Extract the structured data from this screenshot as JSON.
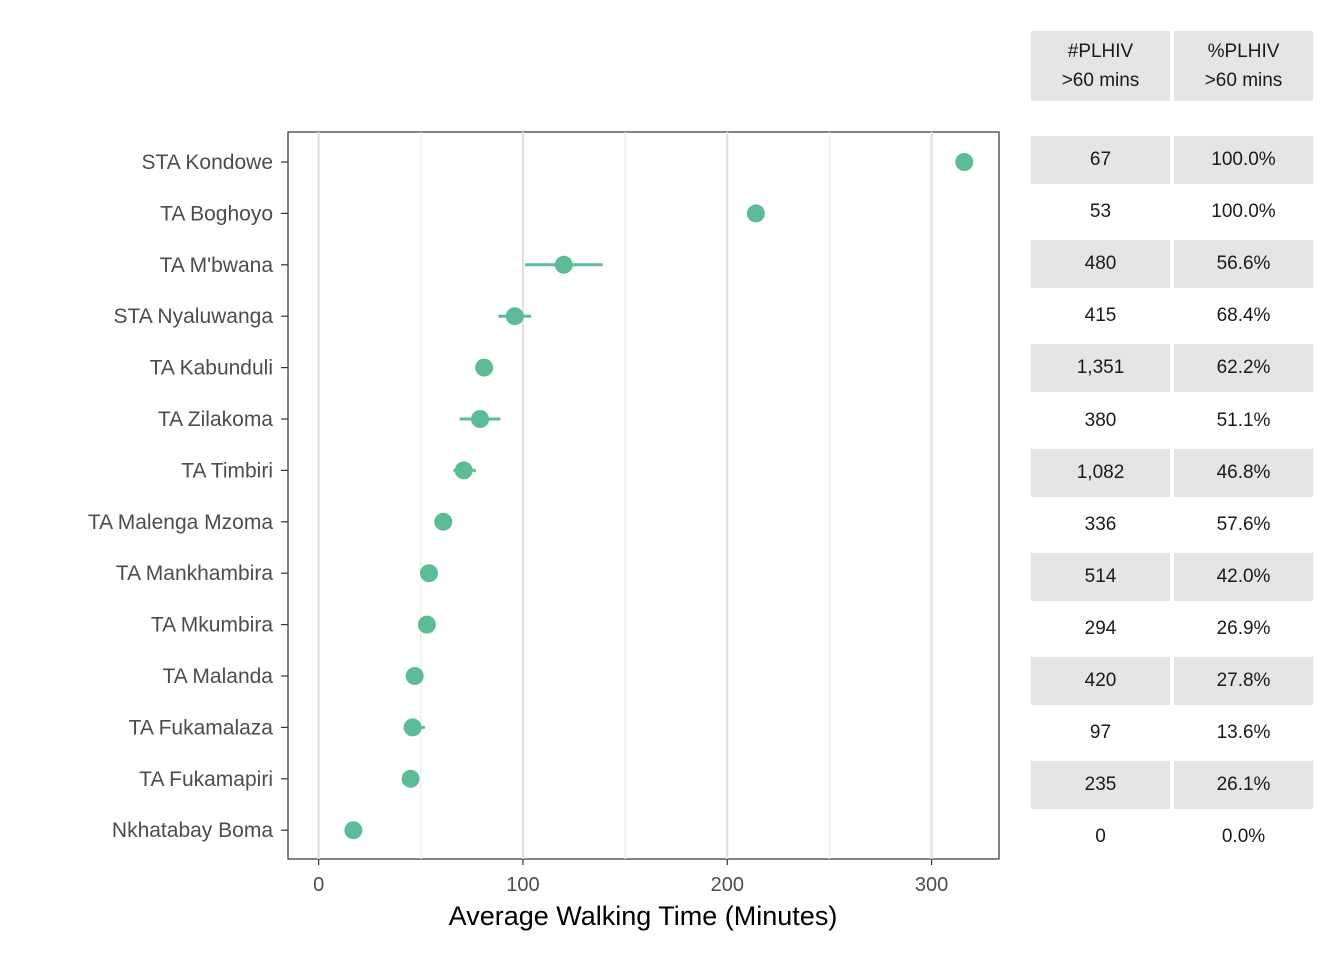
{
  "chart_data": {
    "type": "dot-range",
    "xlabel": "Average Walking Time (Minutes)",
    "xlim": [
      -15,
      333
    ],
    "xticks": [
      0,
      100,
      200,
      300
    ],
    "grid": true,
    "color": "#5bbc95",
    "categories": [
      "STA Kondowe",
      "TA Boghoyo",
      "TA M'bwana",
      "STA Nyaluwanga",
      "TA Kabunduli",
      "TA Zilakoma",
      "TA Timbiri",
      "TA Malenga Mzoma",
      "TA Mankhambira",
      "TA Mkumbira",
      "TA Malanda",
      "TA Fukamalaza",
      "TA Fukamapiri",
      "Nkhatabay Boma"
    ],
    "values": [
      316,
      214,
      120,
      96,
      81,
      79,
      71,
      61,
      54,
      53,
      47,
      46,
      45,
      17
    ],
    "lower": [
      316,
      214,
      101,
      88,
      81,
      69,
      66,
      61,
      54,
      53,
      47,
      42,
      45,
      17
    ],
    "upper": [
      316,
      214,
      139,
      104,
      81,
      89,
      77,
      61,
      54,
      53,
      47,
      52,
      45,
      17
    ]
  },
  "table": {
    "headers": [
      {
        "line1": "#PLHIV",
        "line2": ">60 mins"
      },
      {
        "line1": "%PLHIV",
        "line2": ">60 mins"
      }
    ],
    "rows": [
      {
        "count": "67",
        "pct": "100.0%"
      },
      {
        "count": "53",
        "pct": "100.0%"
      },
      {
        "count": "480",
        "pct": "56.6%"
      },
      {
        "count": "415",
        "pct": "68.4%"
      },
      {
        "count": "1,351",
        "pct": "62.2%"
      },
      {
        "count": "380",
        "pct": "51.1%"
      },
      {
        "count": "1,082",
        "pct": "46.8%"
      },
      {
        "count": "336",
        "pct": "57.6%"
      },
      {
        "count": "514",
        "pct": "42.0%"
      },
      {
        "count": "294",
        "pct": "26.9%"
      },
      {
        "count": "420",
        "pct": "27.8%"
      },
      {
        "count": "97",
        "pct": "13.6%"
      },
      {
        "count": "235",
        "pct": "26.1%"
      },
      {
        "count": "0",
        "pct": "0.0%"
      }
    ],
    "shade_color": "#e5e5e5"
  }
}
